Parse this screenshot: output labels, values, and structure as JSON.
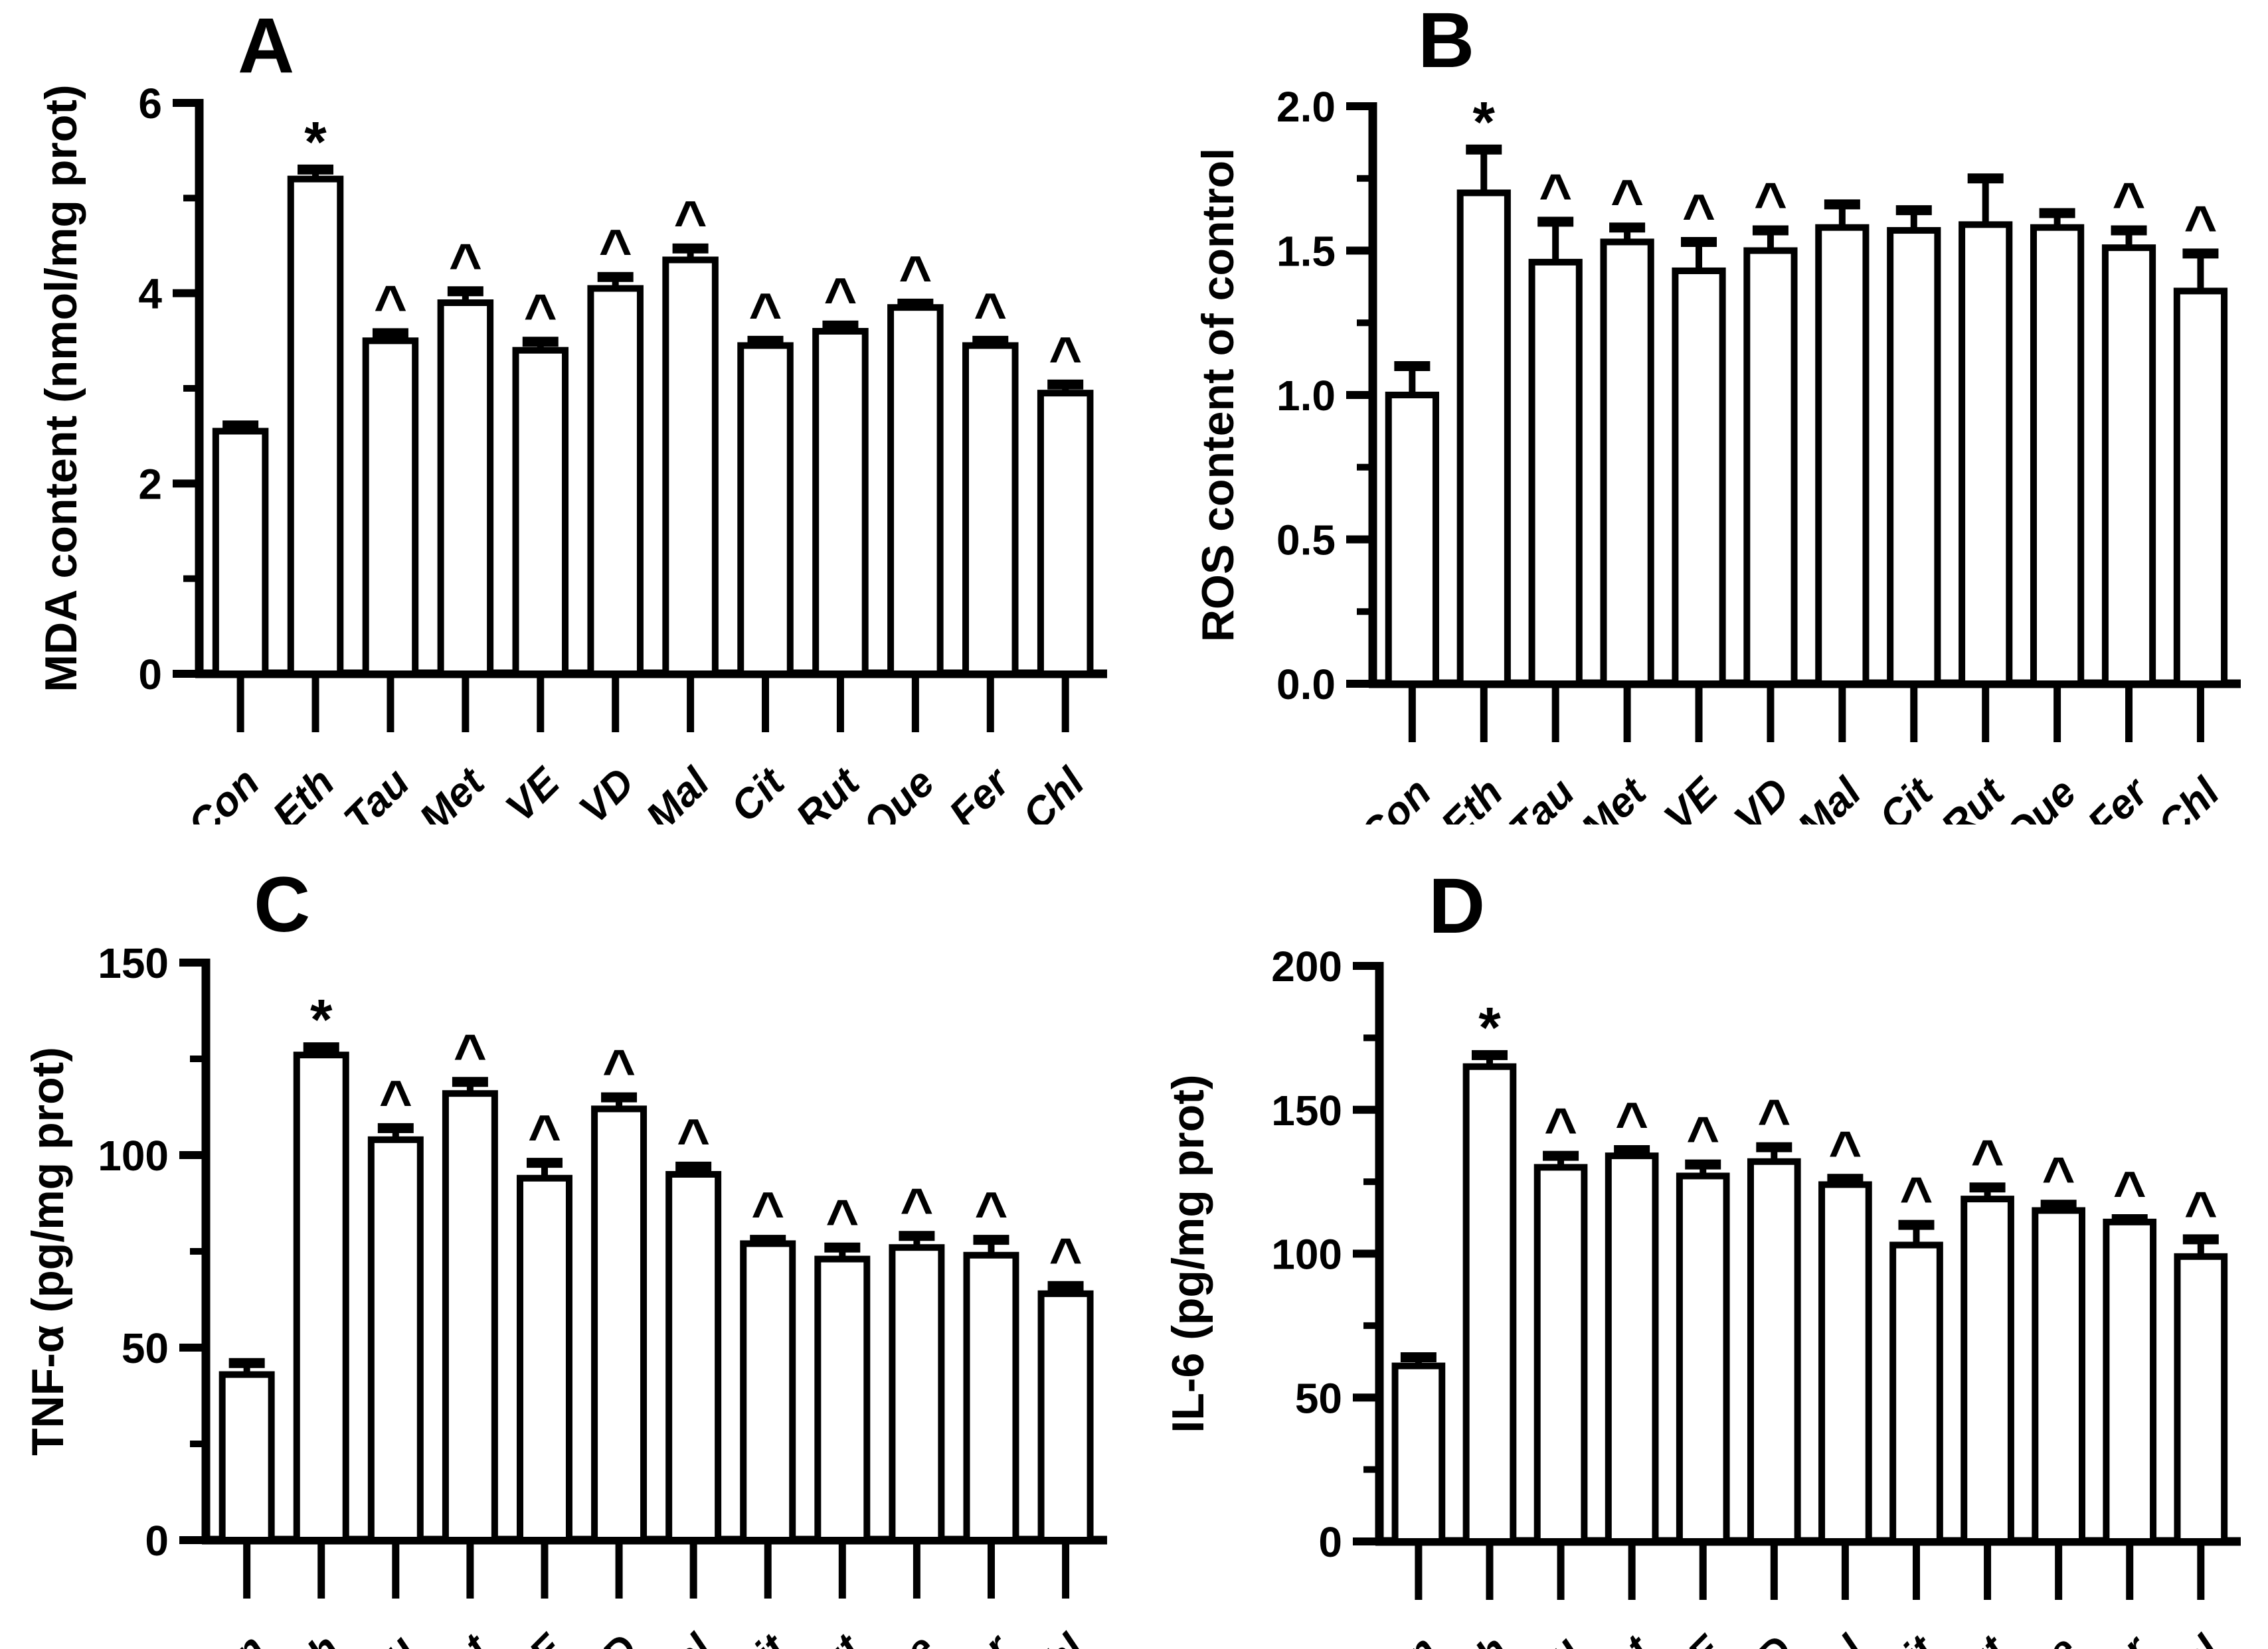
{
  "figure": {
    "background_color": "#ffffff",
    "ink_color": "#000000",
    "bar_fill_color": "#ffffff",
    "significance_note_symbols": [
      "*",
      "^"
    ]
  },
  "chart_data": [
    {
      "type": "bar",
      "panel": "A",
      "ylabel": "MDA content (nmol/mg prot)",
      "xlabel": "",
      "ylim": [
        0,
        6
      ],
      "yticks": [
        0,
        2,
        4,
        6
      ],
      "ytick_labels": [
        "0",
        "2",
        "4",
        "6"
      ],
      "yminor": [
        1,
        3,
        5
      ],
      "grid": "off",
      "legend": "none",
      "categories": [
        "Con",
        "Eth",
        "Tau",
        "Met",
        "VE",
        "VD",
        "Mal",
        "Cit",
        "Rut",
        "Que",
        "Fer",
        "Chl"
      ],
      "values": [
        2.55,
        5.2,
        3.5,
        3.9,
        3.4,
        4.05,
        4.35,
        3.45,
        3.6,
        3.85,
        3.45,
        2.95
      ],
      "errors": [
        0.06,
        0.1,
        0.08,
        0.12,
        0.09,
        0.12,
        0.12,
        0.05,
        0.06,
        0.04,
        0.05,
        0.09
      ],
      "markers": [
        "",
        "*",
        "^",
        "^",
        "^",
        "^",
        "^",
        "^",
        "^",
        "^",
        "^",
        "^"
      ]
    },
    {
      "type": "bar",
      "panel": "B",
      "ylabel": "ROS content of control",
      "xlabel": "",
      "ylim": [
        0,
        2
      ],
      "yticks": [
        0,
        0.5,
        1,
        1.5,
        2
      ],
      "ytick_labels": [
        "0.0",
        "0.5",
        "1.0",
        "1.5",
        "2.0"
      ],
      "yminor": [
        0.25,
        0.75,
        1.25,
        1.75
      ],
      "grid": "off",
      "legend": "none",
      "categories": [
        "Con",
        "Eth",
        "Tau",
        "Met",
        "VE",
        "VD",
        "Mal",
        "Cit",
        "Rut",
        "Que",
        "Fer",
        "Chl"
      ],
      "values": [
        1.0,
        1.7,
        1.46,
        1.53,
        1.43,
        1.5,
        1.58,
        1.57,
        1.59,
        1.58,
        1.51,
        1.36
      ],
      "errors": [
        0.1,
        0.15,
        0.14,
        0.05,
        0.1,
        0.07,
        0.08,
        0.07,
        0.16,
        0.05,
        0.06,
        0.13
      ],
      "markers": [
        "",
        "*",
        "^",
        "^",
        "^",
        "^",
        "",
        "",
        "",
        "",
        "^",
        "^"
      ]
    },
    {
      "type": "bar",
      "panel": "C",
      "ylabel": "TNF-α (pg/mg prot)",
      "xlabel": "",
      "ylim": [
        0,
        150
      ],
      "yticks": [
        0,
        50,
        100,
        150
      ],
      "ytick_labels": [
        "0",
        "50",
        "100",
        "150"
      ],
      "yminor": [
        25,
        75,
        125
      ],
      "grid": "off",
      "legend": "none",
      "categories": [
        "Con",
        "Eth",
        "Tau",
        "Met",
        "VE",
        "VD",
        "Mal",
        "Cit",
        "Rut",
        "Que",
        "Fer",
        "Chl"
      ],
      "values": [
        43,
        126,
        104,
        116,
        94,
        112,
        95,
        77,
        73,
        76,
        74,
        64
      ],
      "errors": [
        3,
        2,
        3,
        3,
        4,
        3,
        2,
        1,
        3,
        3,
        4,
        2
      ],
      "markers": [
        "",
        "*",
        "^",
        "^",
        "^",
        "^",
        "^",
        "^",
        "^",
        "^",
        "^",
        "^"
      ]
    },
    {
      "type": "bar",
      "panel": "D",
      "ylabel": "IL-6 (pg/mg prot)",
      "xlabel": "",
      "ylim": [
        0,
        200
      ],
      "yticks": [
        0,
        50,
        100,
        150,
        200
      ],
      "ytick_labels": [
        "0",
        "50",
        "100",
        "150",
        "200"
      ],
      "yminor": [
        25,
        75,
        125,
        175
      ],
      "grid": "off",
      "legend": "none",
      "categories": [
        "Con",
        "Eth",
        "Tau",
        "Met",
        "VE",
        "VD",
        "Mal",
        "Cit",
        "Rut",
        "Que",
        "Fer",
        "Chl"
      ],
      "values": [
        61,
        165,
        130,
        134,
        127,
        132,
        124,
        103,
        119,
        115,
        111,
        99
      ],
      "errors": [
        3,
        4,
        4,
        2,
        4,
        5,
        2,
        7,
        4,
        2,
        1,
        6
      ],
      "markers": [
        "",
        "*",
        "^",
        "^",
        "^",
        "^",
        "^",
        "^",
        "^",
        "^",
        "^",
        "^"
      ]
    }
  ]
}
